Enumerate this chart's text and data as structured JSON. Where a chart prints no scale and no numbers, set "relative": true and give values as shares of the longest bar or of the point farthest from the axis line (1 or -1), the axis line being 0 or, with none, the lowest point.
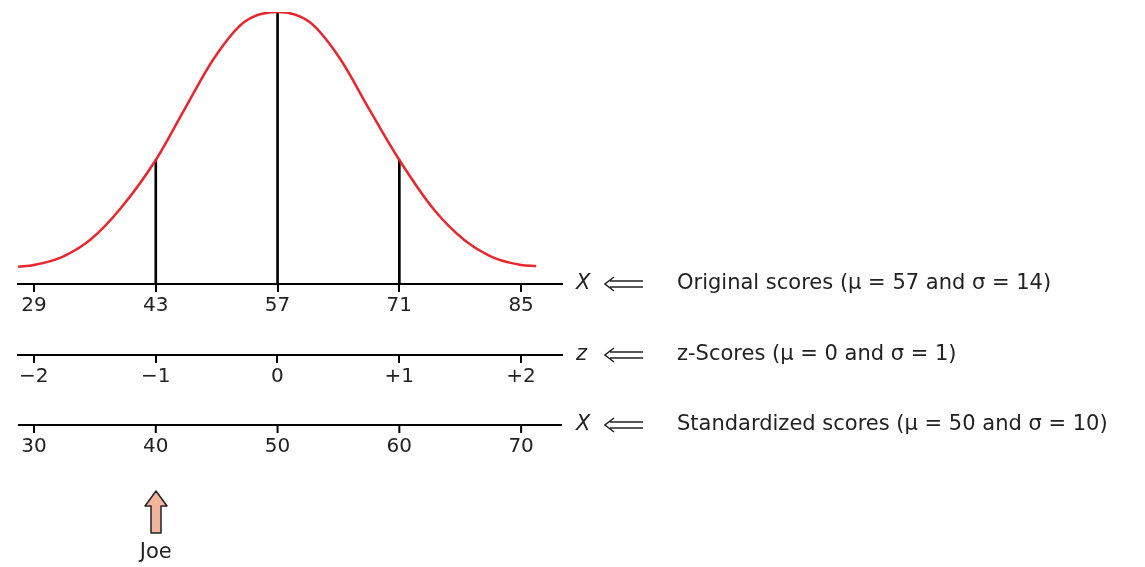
{
  "chart_data": {
    "type": "line",
    "relative": true,
    "xlabel": "X",
    "xlim": [
      27.16,
      89.7
    ],
    "xticks": [
      29,
      43,
      57,
      71,
      85
    ],
    "x2label": "z",
    "x2lim": [
      -2.13,
      2.336
    ],
    "x2ticks": [
      {
        "value": -2,
        "label": "−2"
      },
      {
        "value": -1,
        "label": "−1"
      },
      0,
      {
        "value": 1,
        "label": "+1"
      },
      {
        "value": 2,
        "label": "+2"
      }
    ],
    "series": [
      {
        "color": "#e8262b",
        "x": [
          27.16,
          29,
          31.99,
          35.44,
          38.8,
          43,
          46.27,
          49.72,
          53.17,
          57,
          60.68,
          64.13,
          67.58,
          71,
          75.02,
          78.47,
          81.9,
          85,
          86.73
        ],
        "values": [
          0.063,
          0.07,
          0.096,
          0.162,
          0.272,
          0.456,
          0.64,
          0.831,
          0.963,
          1,
          0.963,
          0.831,
          0.64,
          0.456,
          0.272,
          0.162,
          0.096,
          0.07,
          0.066
        ]
      },
      {
        "type": "bar",
        "color": "#000000",
        "x": [
          43,
          57,
          71
        ],
        "values": [
          0.456,
          1,
          0.456
        ]
      }
    ],
    "annotations": [
      "Original scores (μ = 57 and σ = 14)",
      "z-Scores (μ = 0 and σ = 1)",
      "X",
      "Standardized scores (μ = 50 and σ = 10)",
      "30",
      "40",
      "50",
      "60",
      "70",
      "Joe"
    ]
  }
}
